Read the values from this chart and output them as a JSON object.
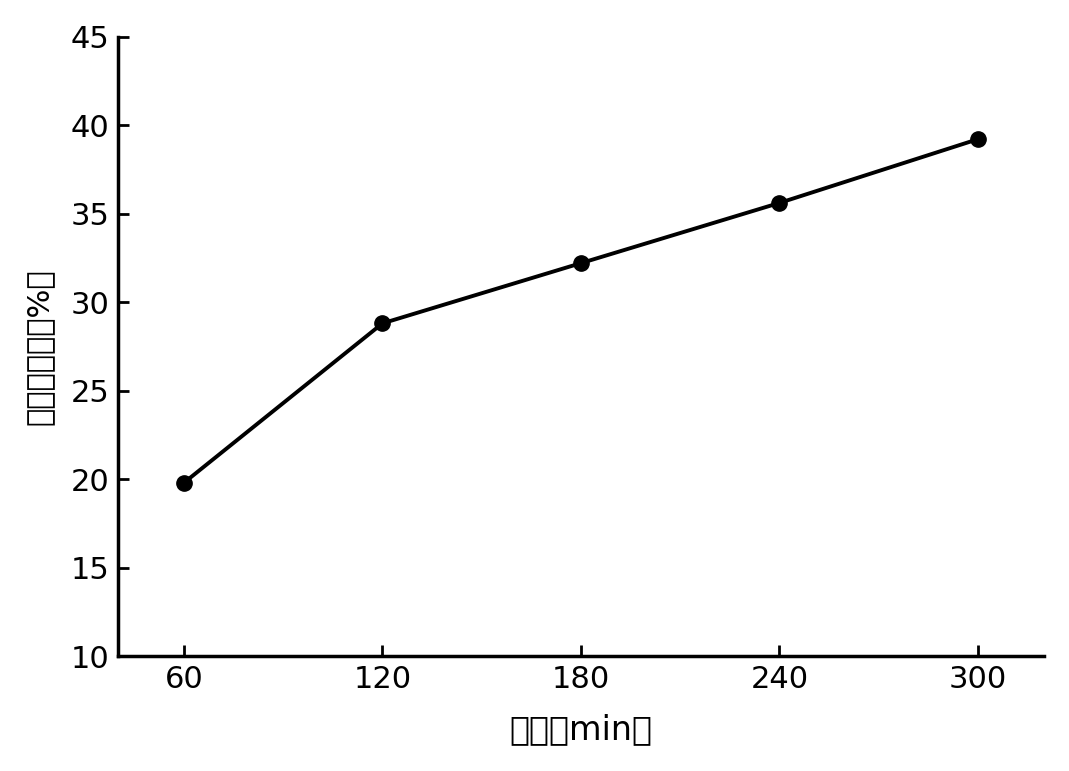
{
  "x": [
    60,
    120,
    180,
    240,
    300
  ],
  "y": [
    19.8,
    28.8,
    32.2,
    35.6,
    39.2
  ],
  "xlim": [
    40,
    320
  ],
  "ylim": [
    10,
    45
  ],
  "xticks": [
    60,
    120,
    180,
    240,
    300
  ],
  "yticks": [
    10,
    15,
    20,
    25,
    30,
    35,
    40,
    45
  ],
  "xlabel": "时间（min）",
  "ylabel": "多糖提取率（%）",
  "line_color": "#000000",
  "marker": "o",
  "marker_size": 11,
  "line_width": 2.8,
  "background_color": "#ffffff",
  "xlabel_fontsize": 24,
  "ylabel_fontsize": 22,
  "tick_fontsize": 22,
  "xlabel_labelpad": 14
}
